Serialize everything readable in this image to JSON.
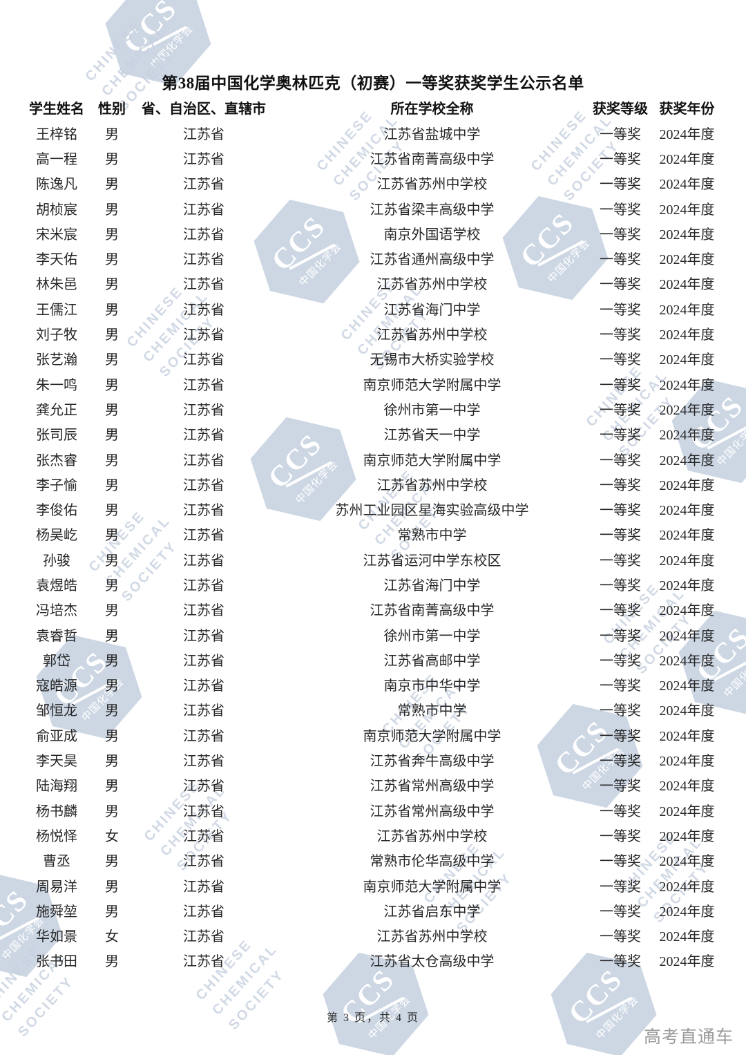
{
  "title": "第38届中国化学奥林匹克（初赛）一等奖获奖学生公示名单",
  "watermark": {
    "logo": "CCS",
    "logo_cn": "中国化学会",
    "en_lines": [
      "CHINESE",
      "CHEMICAL",
      "SOCIETY"
    ]
  },
  "table": {
    "headers": [
      "学生姓名",
      "性别",
      "省、自治区、直辖市",
      "所在学校全称",
      "获奖等级",
      "获奖年份"
    ],
    "rows": [
      {
        "name": "王梓铭",
        "gender": "男",
        "province": "江苏省",
        "school": "江苏省盐城中学",
        "award": "一等奖",
        "year": "2024年度"
      },
      {
        "name": "高一程",
        "gender": "男",
        "province": "江苏省",
        "school": "江苏省南菁高级中学",
        "award": "一等奖",
        "year": "2024年度"
      },
      {
        "name": "陈逸凡",
        "gender": "男",
        "province": "江苏省",
        "school": "江苏省苏州中学校",
        "award": "一等奖",
        "year": "2024年度"
      },
      {
        "name": "胡桢宸",
        "gender": "男",
        "province": "江苏省",
        "school": "江苏省梁丰高级中学",
        "award": "一等奖",
        "year": "2024年度"
      },
      {
        "name": "宋米宸",
        "gender": "男",
        "province": "江苏省",
        "school": "南京外国语学校",
        "award": "一等奖",
        "year": "2024年度"
      },
      {
        "name": "李天佑",
        "gender": "男",
        "province": "江苏省",
        "school": "江苏省通州高级中学",
        "award": "一等奖",
        "year": "2024年度"
      },
      {
        "name": "林朱邑",
        "gender": "男",
        "province": "江苏省",
        "school": "江苏省苏州中学校",
        "award": "一等奖",
        "year": "2024年度"
      },
      {
        "name": "王儒江",
        "gender": "男",
        "province": "江苏省",
        "school": "江苏省海门中学",
        "award": "一等奖",
        "year": "2024年度"
      },
      {
        "name": "刘子牧",
        "gender": "男",
        "province": "江苏省",
        "school": "江苏省苏州中学校",
        "award": "一等奖",
        "year": "2024年度"
      },
      {
        "name": "张艺瀚",
        "gender": "男",
        "province": "江苏省",
        "school": "无锡市大桥实验学校",
        "award": "一等奖",
        "year": "2024年度"
      },
      {
        "name": "朱一鸣",
        "gender": "男",
        "province": "江苏省",
        "school": "南京师范大学附属中学",
        "award": "一等奖",
        "year": "2024年度"
      },
      {
        "name": "龚允正",
        "gender": "男",
        "province": "江苏省",
        "school": "徐州市第一中学",
        "award": "一等奖",
        "year": "2024年度"
      },
      {
        "name": "张司辰",
        "gender": "男",
        "province": "江苏省",
        "school": "江苏省天一中学",
        "award": "一等奖",
        "year": "2024年度"
      },
      {
        "name": "张杰睿",
        "gender": "男",
        "province": "江苏省",
        "school": "南京师范大学附属中学",
        "award": "一等奖",
        "year": "2024年度"
      },
      {
        "name": "李子愉",
        "gender": "男",
        "province": "江苏省",
        "school": "江苏省苏州中学校",
        "award": "一等奖",
        "year": "2024年度"
      },
      {
        "name": "李俊佑",
        "gender": "男",
        "province": "江苏省",
        "school": "苏州工业园区星海实验高级中学",
        "award": "一等奖",
        "year": "2024年度"
      },
      {
        "name": "杨吴屹",
        "gender": "男",
        "province": "江苏省",
        "school": "常熟市中学",
        "award": "一等奖",
        "year": "2024年度"
      },
      {
        "name": "孙骏",
        "gender": "男",
        "province": "江苏省",
        "school": "江苏省运河中学东校区",
        "award": "一等奖",
        "year": "2024年度"
      },
      {
        "name": "袁煜皓",
        "gender": "男",
        "province": "江苏省",
        "school": "江苏省海门中学",
        "award": "一等奖",
        "year": "2024年度"
      },
      {
        "name": "冯培杰",
        "gender": "男",
        "province": "江苏省",
        "school": "江苏省南菁高级中学",
        "award": "一等奖",
        "year": "2024年度"
      },
      {
        "name": "袁睿哲",
        "gender": "男",
        "province": "江苏省",
        "school": "徐州市第一中学",
        "award": "一等奖",
        "year": "2024年度"
      },
      {
        "name": "郭岱",
        "gender": "男",
        "province": "江苏省",
        "school": "江苏省高邮中学",
        "award": "一等奖",
        "year": "2024年度"
      },
      {
        "name": "寇皓源",
        "gender": "男",
        "province": "江苏省",
        "school": "南京市中华中学",
        "award": "一等奖",
        "year": "2024年度"
      },
      {
        "name": "邹恒龙",
        "gender": "男",
        "province": "江苏省",
        "school": "常熟市中学",
        "award": "一等奖",
        "year": "2024年度"
      },
      {
        "name": "俞亚成",
        "gender": "男",
        "province": "江苏省",
        "school": "南京师范大学附属中学",
        "award": "一等奖",
        "year": "2024年度"
      },
      {
        "name": "李天昊",
        "gender": "男",
        "province": "江苏省",
        "school": "江苏省奔牛高级中学",
        "award": "一等奖",
        "year": "2024年度"
      },
      {
        "name": "陆海翔",
        "gender": "男",
        "province": "江苏省",
        "school": "江苏省常州高级中学",
        "award": "一等奖",
        "year": "2024年度"
      },
      {
        "name": "杨书麟",
        "gender": "男",
        "province": "江苏省",
        "school": "江苏省常州高级中学",
        "award": "一等奖",
        "year": "2024年度"
      },
      {
        "name": "杨悦怿",
        "gender": "女",
        "province": "江苏省",
        "school": "江苏省苏州中学校",
        "award": "一等奖",
        "year": "2024年度"
      },
      {
        "name": "曹丞",
        "gender": "男",
        "province": "江苏省",
        "school": "常熟市伦华高级中学",
        "award": "一等奖",
        "year": "2024年度"
      },
      {
        "name": "周易洋",
        "gender": "男",
        "province": "江苏省",
        "school": "南京师范大学附属中学",
        "award": "一等奖",
        "year": "2024年度"
      },
      {
        "name": "施舜堃",
        "gender": "男",
        "province": "江苏省",
        "school": "江苏省启东中学",
        "award": "一等奖",
        "year": "2024年度"
      },
      {
        "name": "华如景",
        "gender": "女",
        "province": "江苏省",
        "school": "江苏省苏州中学校",
        "award": "一等奖",
        "year": "2024年度"
      },
      {
        "name": "张书田",
        "gender": "男",
        "province": "江苏省",
        "school": "江苏省太仓高级中学",
        "award": "一等奖",
        "year": "2024年度"
      }
    ]
  },
  "footer": {
    "page_info": "第 3 页，共 4 页",
    "brand": "高考直通车"
  }
}
